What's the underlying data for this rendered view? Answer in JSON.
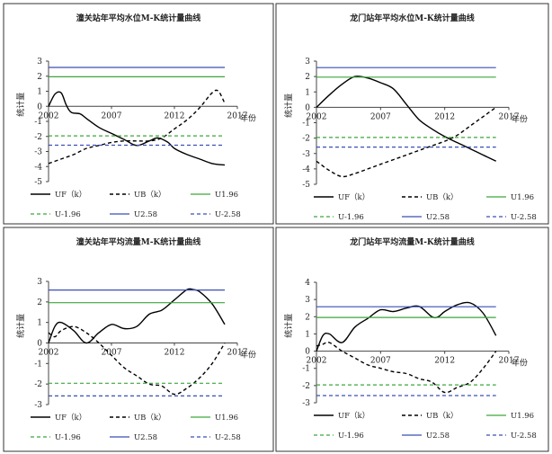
{
  "chart_data": [
    {
      "type": "line",
      "title": "潼关站年平均水位M-K统计量曲线",
      "xlabel": "年份",
      "ylabel": "统计量",
      "xlim": [
        2002,
        2017
      ],
      "ylim": [
        -5,
        3
      ],
      "yticks": [
        -5,
        -4,
        -3,
        -2,
        -1,
        0,
        1,
        2,
        3
      ],
      "xticks": [
        2002,
        2007,
        2012,
        2017
      ],
      "legend_position": "bottom",
      "series": [
        {
          "name": "UF（k）",
          "style": "solid",
          "color": "#000000",
          "x": [
            2002,
            2002.5,
            2003,
            2003.4,
            2003.8,
            2004.5,
            2005,
            2006,
            2007,
            2008,
            2009,
            2010,
            2010.7,
            2011.5,
            2012,
            2013,
            2014,
            2015,
            2016
          ],
          "y": [
            0,
            0.8,
            0.9,
            0.1,
            -0.4,
            -0.5,
            -0.8,
            -1.4,
            -1.8,
            -2.2,
            -2.6,
            -2.3,
            -2.1,
            -2.4,
            -2.8,
            -3.2,
            -3.5,
            -3.8,
            -3.9
          ]
        },
        {
          "name": "UB（k）",
          "style": "dashed",
          "color": "#000000",
          "x": [
            2002,
            2003,
            2004,
            2005,
            2006,
            2007,
            2008,
            2009,
            2010,
            2011,
            2012,
            2013,
            2014,
            2015,
            2015.5,
            2016
          ],
          "y": [
            -3.8,
            -3.5,
            -3.2,
            -2.8,
            -2.6,
            -2.4,
            -2.3,
            -2.3,
            -2.3,
            -2.1,
            -1.5,
            -0.9,
            -0.1,
            0.9,
            1.0,
            0.2
          ]
        },
        {
          "name": "U1.96",
          "style": "solid",
          "color": "#3ca63c",
          "x": [
            2002,
            2016
          ],
          "y": [
            1.96,
            1.96
          ]
        },
        {
          "name": "U-1.96",
          "style": "dashed",
          "color": "#3ca63c",
          "x": [
            2002,
            2016
          ],
          "y": [
            -1.96,
            -1.96
          ]
        },
        {
          "name": "U2.58",
          "style": "solid",
          "color": "#3a4fb5",
          "x": [
            2002,
            2016
          ],
          "y": [
            2.58,
            2.58
          ]
        },
        {
          "name": "U-2.58",
          "style": "dashed",
          "color": "#3a4fb5",
          "x": [
            2002,
            2016
          ],
          "y": [
            -2.58,
            -2.58
          ]
        }
      ]
    },
    {
      "type": "line",
      "title": "龙门站年平均水位M-K统计量曲线",
      "xlabel": "年份",
      "ylabel": "统计量",
      "xlim": [
        2002,
        2017
      ],
      "ylim": [
        -5,
        3
      ],
      "yticks": [
        -5,
        -4,
        -3,
        -2,
        -1,
        0,
        1,
        2,
        3
      ],
      "xticks": [
        2002,
        2007,
        2012,
        2017
      ],
      "legend_position": "bottom",
      "series": [
        {
          "name": "UF（k）",
          "style": "solid",
          "color": "#000000",
          "x": [
            2002,
            2003,
            2004,
            2005,
            2006,
            2007,
            2008,
            2009,
            2010,
            2011,
            2012,
            2013,
            2014,
            2015,
            2016
          ],
          "y": [
            0,
            0.8,
            1.5,
            2.0,
            1.9,
            1.6,
            1.2,
            0.2,
            -0.8,
            -1.4,
            -1.9,
            -2.3,
            -2.7,
            -3.1,
            -3.5
          ]
        },
        {
          "name": "UB（k）",
          "style": "dashed",
          "color": "#000000",
          "x": [
            2002,
            2003,
            2004,
            2005,
            2006,
            2007,
            2008,
            2009,
            2010,
            2011,
            2012,
            2013,
            2014,
            2015,
            2016
          ],
          "y": [
            -3.5,
            -4.1,
            -4.5,
            -4.3,
            -4.0,
            -3.7,
            -3.4,
            -3.1,
            -2.8,
            -2.5,
            -2.2,
            -1.8,
            -1.2,
            -0.6,
            0
          ]
        },
        {
          "name": "U1.96",
          "style": "solid",
          "color": "#3ca63c",
          "x": [
            2002,
            2016
          ],
          "y": [
            1.96,
            1.96
          ]
        },
        {
          "name": "U-1.96",
          "style": "dashed",
          "color": "#3ca63c",
          "x": [
            2002,
            2016
          ],
          "y": [
            -1.96,
            -1.96
          ]
        },
        {
          "name": "U2.58",
          "style": "solid",
          "color": "#3a4fb5",
          "x": [
            2002,
            2016
          ],
          "y": [
            2.58,
            2.58
          ]
        },
        {
          "name": "U-2.58",
          "style": "dashed",
          "color": "#3a4fb5",
          "x": [
            2002,
            2016
          ],
          "y": [
            -2.58,
            -2.58
          ]
        }
      ]
    },
    {
      "type": "line",
      "title": "潼关站年平均流量M-K统计量曲线",
      "xlabel": "年份",
      "ylabel": "统计量",
      "xlim": [
        2002,
        2017
      ],
      "ylim": [
        -3,
        3
      ],
      "yticks": [
        -3,
        -2,
        -1,
        0,
        1,
        2,
        3
      ],
      "xticks": [
        2002,
        2007,
        2012,
        2017
      ],
      "legend_position": "bottom",
      "series": [
        {
          "name": "UF（k）",
          "style": "solid",
          "color": "#000000",
          "x": [
            2002,
            2002.5,
            2003,
            2004,
            2005,
            2006,
            2007,
            2008,
            2009,
            2010,
            2011,
            2012,
            2013,
            2013.5,
            2014,
            2015,
            2016
          ],
          "y": [
            0,
            0.8,
            1.0,
            0.6,
            0.0,
            0.5,
            0.9,
            0.7,
            0.8,
            1.4,
            1.6,
            2.1,
            2.6,
            2.6,
            2.5,
            1.9,
            0.9
          ]
        },
        {
          "name": "UB（k）",
          "style": "dashed",
          "color": "#000000",
          "x": [
            2002,
            2002.5,
            2003,
            2004,
            2005,
            2006,
            2007,
            2008,
            2009,
            2010,
            2011,
            2012,
            2013,
            2014,
            2015,
            2016
          ],
          "y": [
            0.5,
            0.3,
            0.6,
            0.8,
            0.5,
            0.0,
            -0.6,
            -1.2,
            -1.6,
            -2.0,
            -2.1,
            -2.5,
            -2.2,
            -1.7,
            -1.0,
            0
          ]
        },
        {
          "name": "U1.96",
          "style": "solid",
          "color": "#3ca63c",
          "x": [
            2002,
            2016
          ],
          "y": [
            1.96,
            1.96
          ]
        },
        {
          "name": "U-1.96",
          "style": "dashed",
          "color": "#3ca63c",
          "x": [
            2002,
            2016
          ],
          "y": [
            -1.96,
            -1.96
          ]
        },
        {
          "name": "U2.58",
          "style": "solid",
          "color": "#3a4fb5",
          "x": [
            2002,
            2016
          ],
          "y": [
            2.58,
            2.58
          ]
        },
        {
          "name": "U-2.58",
          "style": "dashed",
          "color": "#3a4fb5",
          "x": [
            2002,
            2016
          ],
          "y": [
            -2.58,
            -2.58
          ]
        }
      ]
    },
    {
      "type": "line",
      "title": "龙门站年平均流量M-K统计量曲线",
      "xlabel": "年份",
      "ylabel": "统计量",
      "xlim": [
        2002,
        2017
      ],
      "ylim": [
        -3,
        4
      ],
      "yticks": [
        -3,
        -2,
        -1,
        0,
        1,
        2,
        3,
        4
      ],
      "xticks": [
        2002,
        2007,
        2012,
        2017
      ],
      "legend_position": "bottom",
      "series": [
        {
          "name": "UF（k）",
          "style": "solid",
          "color": "#000000",
          "x": [
            2002,
            2002.5,
            2003,
            2004,
            2005,
            2006,
            2007,
            2008,
            2009,
            2010,
            2011,
            2011.5,
            2012,
            2013,
            2014,
            2015,
            2016
          ],
          "y": [
            0,
            0.9,
            1.0,
            0.5,
            1.4,
            1.9,
            2.4,
            2.3,
            2.5,
            2.6,
            2.0,
            2.0,
            2.3,
            2.7,
            2.8,
            2.2,
            0.9
          ]
        },
        {
          "name": "UB（k）",
          "style": "dashed",
          "color": "#000000",
          "x": [
            2002,
            2002.5,
            2003,
            2004,
            2005,
            2006,
            2007,
            2008,
            2009,
            2010,
            2011,
            2012,
            2013,
            2014,
            2015,
            2016
          ],
          "y": [
            0.3,
            0.4,
            0.5,
            0.0,
            -0.4,
            -0.8,
            -1.0,
            -1.2,
            -1.3,
            -1.6,
            -1.8,
            -2.4,
            -2.1,
            -1.8,
            -1.0,
            0
          ]
        },
        {
          "name": "U1.96",
          "style": "solid",
          "color": "#3ca63c",
          "x": [
            2002,
            2016
          ],
          "y": [
            1.96,
            1.96
          ]
        },
        {
          "name": "U-1.96",
          "style": "dashed",
          "color": "#3ca63c",
          "x": [
            2002,
            2016
          ],
          "y": [
            -1.96,
            -1.96
          ]
        },
        {
          "name": "U2.58",
          "style": "solid",
          "color": "#3a4fb5",
          "x": [
            2002,
            2016
          ],
          "y": [
            2.58,
            2.58
          ]
        },
        {
          "name": "U-2.58",
          "style": "dashed",
          "color": "#3a4fb5",
          "x": [
            2002,
            2016
          ],
          "y": [
            -2.58,
            -2.58
          ]
        }
      ]
    }
  ]
}
